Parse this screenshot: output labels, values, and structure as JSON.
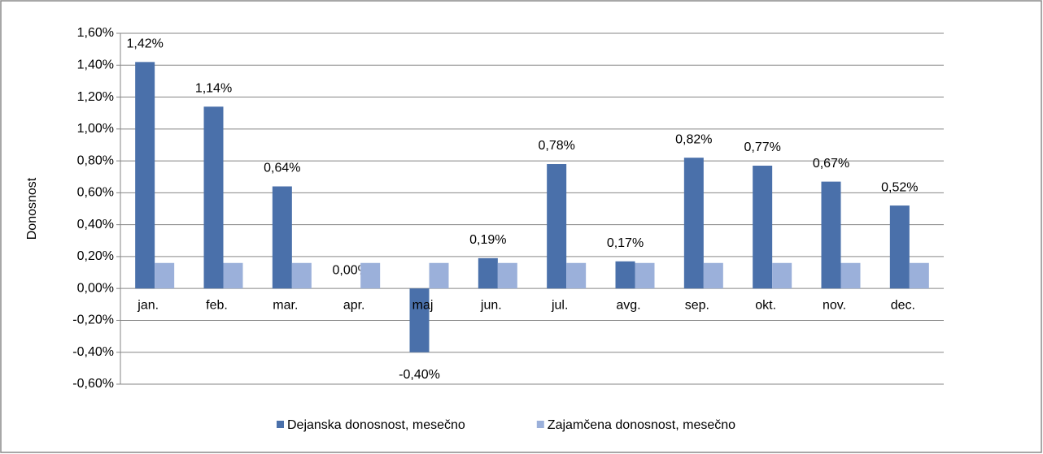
{
  "chart_data": {
    "type": "bar",
    "y_label": "Donosnost",
    "categories": [
      "jan.",
      "feb.",
      "mar.",
      "apr.",
      "maj",
      "jun.",
      "jul.",
      "avg.",
      "sep.",
      "okt.",
      "nov.",
      "dec."
    ],
    "series": [
      {
        "name": "Dejanska donosnost, mesečno",
        "color": "#4a70aa",
        "values": [
          1.42,
          1.14,
          0.64,
          0,
          -0.4,
          0.19,
          0.78,
          0.17,
          0.82,
          0.77,
          0.67,
          0.52
        ],
        "value_labels": [
          "1,42%",
          "1,14%",
          "0,64%",
          "0,00%",
          "-0,40%",
          "0,19%",
          "0,78%",
          "0,17%",
          "0,82%",
          "0,77%",
          "0,67%",
          "0,52%"
        ]
      },
      {
        "name": "Zajamčena donosnost, mesečno",
        "color": "#9bb0da",
        "values": [
          0.16,
          0.16,
          0.16,
          0.16,
          0.16,
          0.16,
          0.16,
          0.16,
          0.16,
          0.16,
          0.16,
          0.16
        ]
      }
    ],
    "ylim": [
      -0.6,
      1.6
    ],
    "yticks": [
      {
        "value": -0.6,
        "label": "-0,60%"
      },
      {
        "value": -0.4,
        "label": "-0,40%"
      },
      {
        "value": -0.2,
        "label": "-0,20%"
      },
      {
        "value": 0,
        "label": "0,00%"
      },
      {
        "value": 0.2,
        "label": "0,20%"
      },
      {
        "value": 0.4,
        "label": "0,40%"
      },
      {
        "value": 0.6,
        "label": "0,60%"
      },
      {
        "value": 0.8,
        "label": "0,80%"
      },
      {
        "value": 1.0,
        "label": "1,00%"
      },
      {
        "value": 1.2,
        "label": "1,20%"
      },
      {
        "value": 1.4,
        "label": "1,40%"
      },
      {
        "value": 1.6,
        "label": "1,60%"
      }
    ],
    "grid": true,
    "legend": "bottom"
  }
}
